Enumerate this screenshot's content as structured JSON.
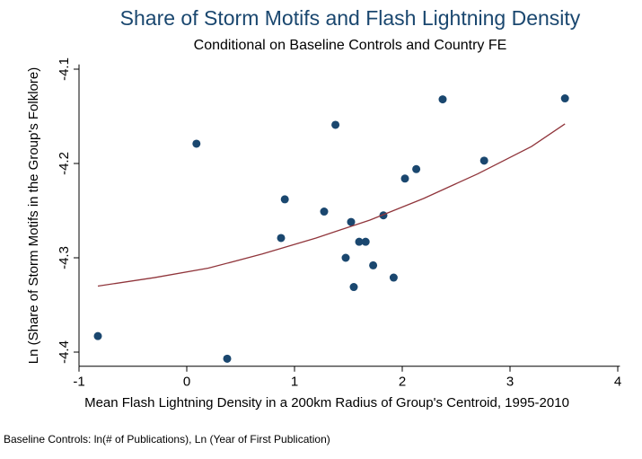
{
  "chart_data": {
    "type": "scatter",
    "title": "Share of Storm Motifs and Flash Lightning Density",
    "subtitle": "Conditional on Baseline Controls and Country FE",
    "x_label": "Mean Flash Lightning Density in a 200km Radius of Group's Centroid, 1995-2010",
    "y_label": "Ln (Share of Storm Motifs in the Group's Folklore)",
    "note": "Baseline Controls: ln(# of Publications), Ln (Year of First Publication)",
    "xlim": [
      -1,
      4.02
    ],
    "ylim": [
      -4.415,
      -4.095
    ],
    "xticks": [
      -1,
      0,
      1,
      2,
      3,
      4
    ],
    "yticks": [
      -4.4,
      -4.3,
      -4.2,
      -4.1
    ],
    "series": [
      {
        "kind": "points",
        "color": "#1a476f",
        "x": [
          -0.825,
          0.09,
          0.375,
          0.91,
          0.875,
          1.275,
          1.38,
          1.525,
          1.475,
          1.55,
          1.6,
          1.66,
          1.73,
          1.825,
          1.92,
          2.025,
          2.13,
          2.375,
          2.76,
          3.51
        ],
        "values": [
          -4.383,
          -4.179,
          -4.407,
          -4.238,
          -4.279,
          -4.251,
          -4.159,
          -4.262,
          -4.3,
          -4.331,
          -4.283,
          -4.283,
          -4.308,
          -4.255,
          -4.321,
          -4.216,
          -4.206,
          -4.132,
          -4.197,
          -4.131
        ]
      },
      {
        "kind": "line",
        "color": "#90353b",
        "x": [
          -0.825,
          -0.3,
          0.2,
          0.7,
          1.2,
          1.7,
          2.2,
          2.7,
          3.2,
          3.51
        ],
        "values": [
          -4.33,
          -4.321,
          -4.311,
          -4.296,
          -4.279,
          -4.26,
          -4.237,
          -4.211,
          -4.182,
          -4.158
        ]
      }
    ]
  }
}
